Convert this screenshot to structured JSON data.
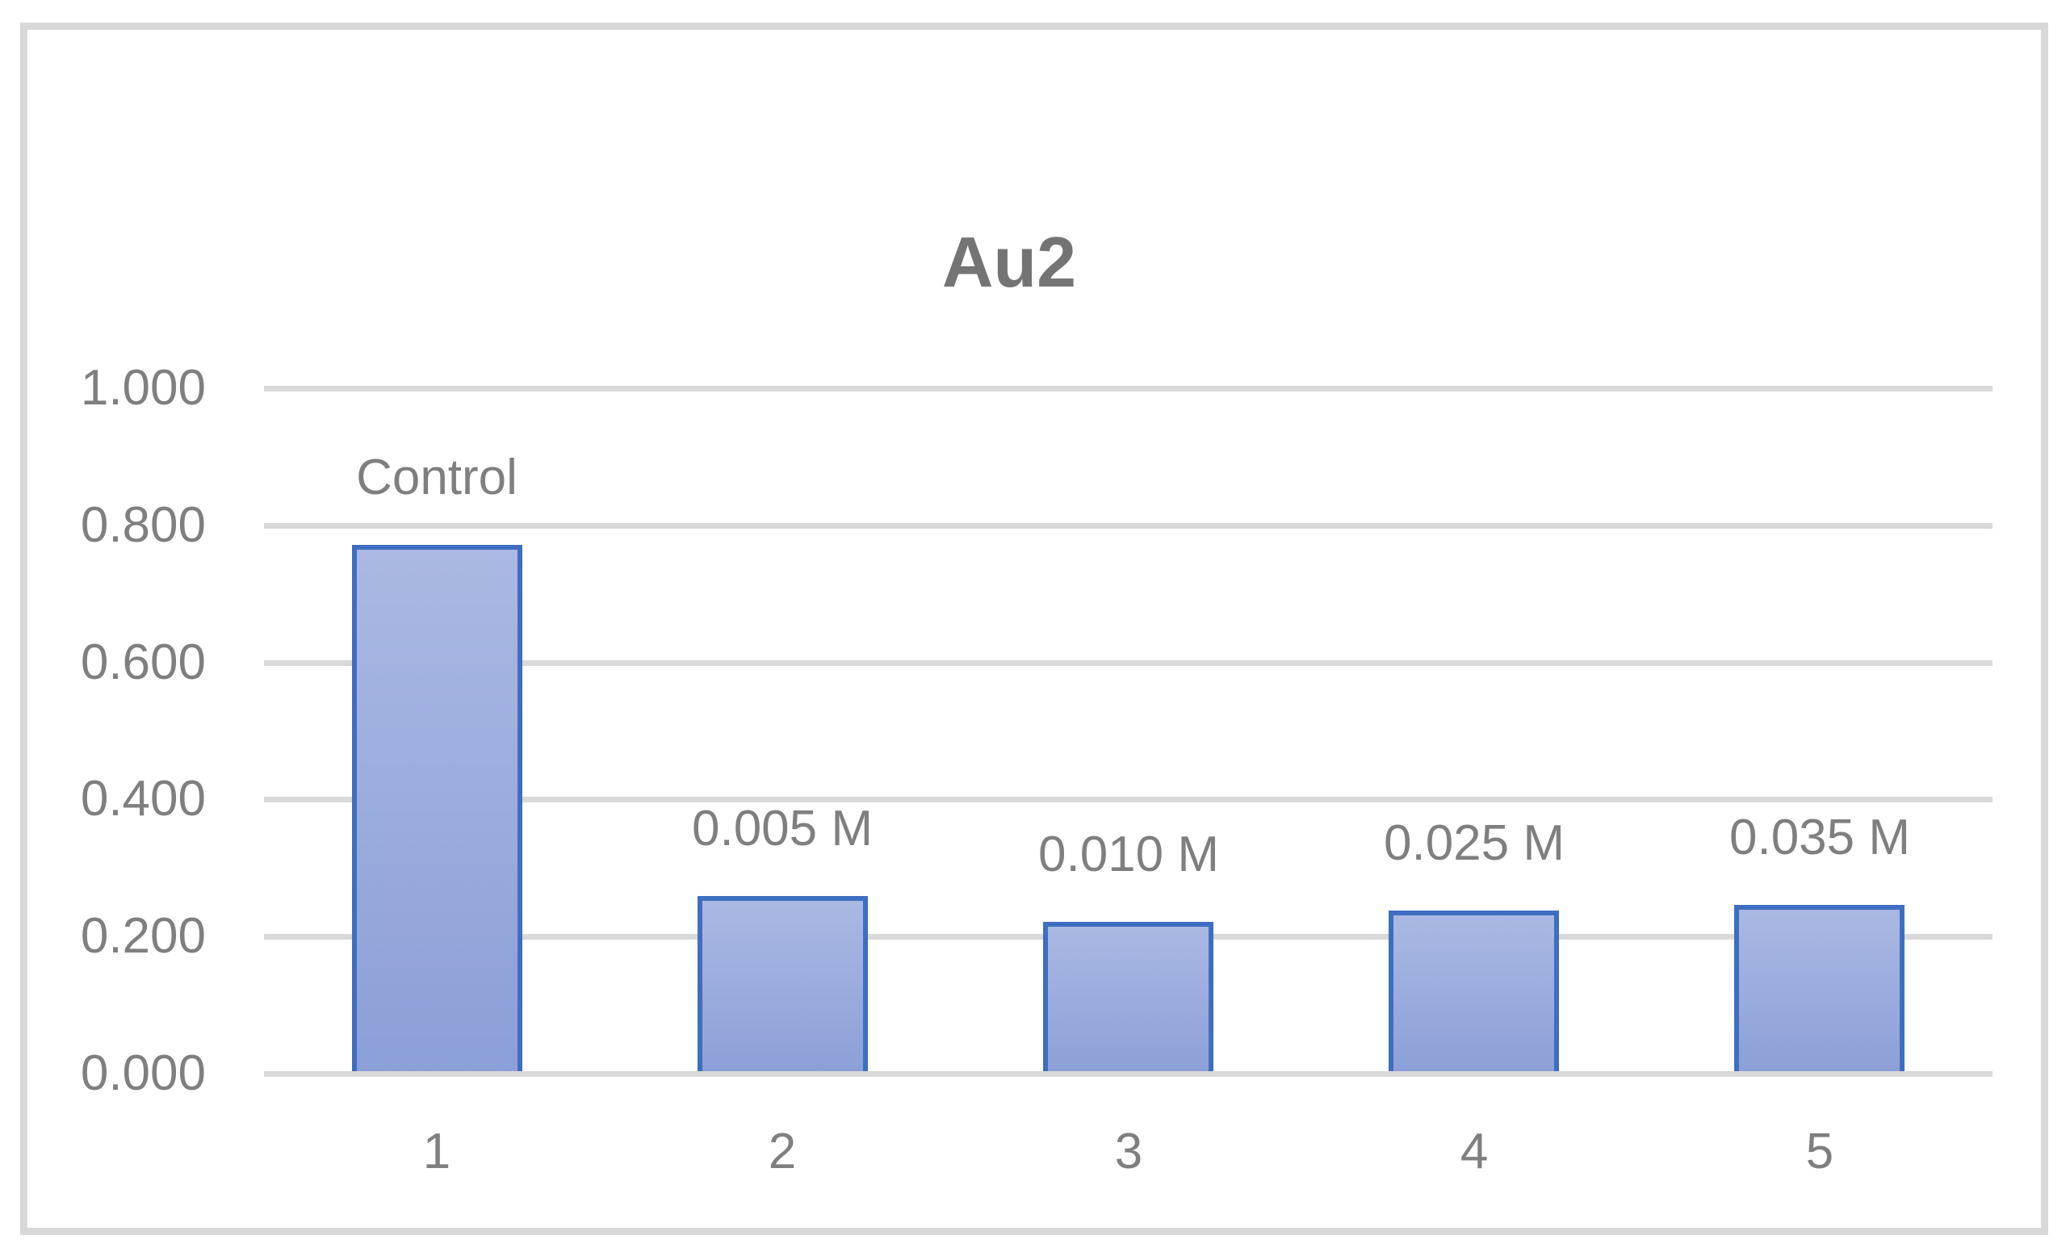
{
  "chart_data": {
    "type": "bar",
    "title": "Au2",
    "categories": [
      "1",
      "2",
      "3",
      "4",
      "5"
    ],
    "values": [
      0.772,
      0.259,
      0.222,
      0.238,
      0.246
    ],
    "bar_labels": [
      "Control",
      "0.005 M",
      "0.010 M",
      "0.025 M",
      "0.035 M"
    ],
    "xlabel": "",
    "ylabel": "",
    "ylim": [
      0.0,
      1.0
    ],
    "ytick_step": 0.2,
    "ytick_labels": [
      "0.000",
      "0.200",
      "0.400",
      "0.600",
      "0.800",
      "1.000"
    ],
    "grid": true,
    "legend_position": "none",
    "colors": {
      "bar_fill_top": "#aab8e3",
      "bar_fill_bottom": "#8b9fd7",
      "bar_border": "#3e6ec1",
      "gridline": "#d9d9d9",
      "axis_text": "#7f7f7f",
      "title_text": "#747474",
      "frame_border": "#d8d8d8"
    }
  }
}
